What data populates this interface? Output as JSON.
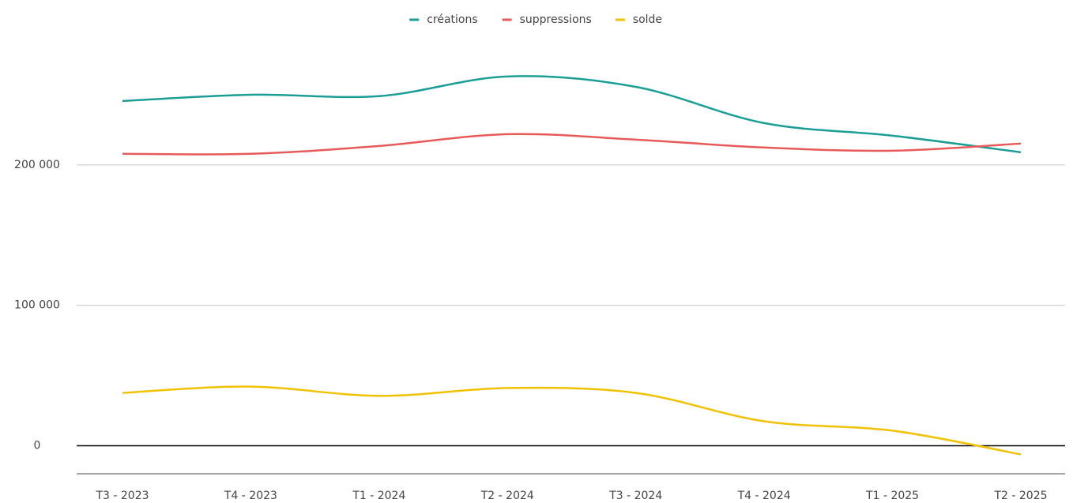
{
  "chart_data": {
    "type": "line",
    "categories": [
      "T3 - 2023",
      "T4 - 2023",
      "T1 - 2024",
      "T2 - 2024",
      "T3 - 2024",
      "T4 - 2024",
      "T1 - 2025",
      "T2 - 2025"
    ],
    "series": [
      {
        "name": "créations",
        "color": "#1a9e96",
        "values": [
          245500,
          250000,
          249000,
          263000,
          255600,
          229800,
          220800,
          209000
        ]
      },
      {
        "name": "suppressions",
        "color": "#e8595a",
        "values": [
          207900,
          207900,
          213500,
          221900,
          218000,
          212400,
          210100,
          215200
        ]
      },
      {
        "name": "solde",
        "color": "#f2c200",
        "values": [
          37600,
          42100,
          35500,
          41100,
          37600,
          17400,
          10700,
          -6200
        ]
      }
    ],
    "ylim": [
      -20000,
      280000
    ],
    "yticks": [
      0,
      {
        "value": 100000,
        "label": "100 000"
      },
      {
        "value": 200000,
        "label": "200 000"
      }
    ],
    "grid": true,
    "legend": "top"
  }
}
